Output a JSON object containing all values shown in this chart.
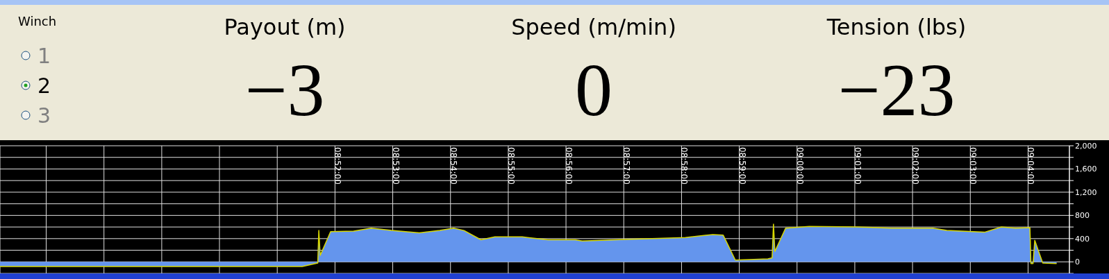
{
  "chart_data": [
    {
      "type": "other",
      "title": "Winch",
      "categories": [
        "1",
        "2",
        "3"
      ],
      "colors": [
        "#808080",
        "#000000",
        "#808080"
      ],
      "annotations": [
        "Payout (m)",
        "−3",
        "Speed (m/min)",
        "0",
        "Tension (lbs)",
        "−23"
      ]
    },
    {
      "type": "area",
      "x": [
        8.77,
        8.8572,
        8.8617,
        8.862,
        8.8624,
        8.8654,
        8.8721,
        8.8771,
        8.883,
        8.891,
        8.8969,
        8.9009,
        8.9039,
        8.9088,
        8.9128,
        8.9207,
        8.9281,
        8.936,
        8.938,
        8.9519,
        8.9678,
        8.9757,
        8.9787,
        8.9822,
        8.9916,
        8.9928,
        8.9932,
        8.9936,
        8.9967,
        9.0035,
        9.0174,
        9.0273,
        9.0392,
        9.0432,
        9.0541,
        9.059,
        9.063,
        9.0672,
        9.0675,
        9.0681,
        9.0686,
        9.0709,
        9.0749
      ],
      "series": [
        {
          "color": "#6495ed",
          "values": [
            -80,
            -80,
            -20,
            540,
            110,
            520,
            530,
            580,
            540,
            500,
            540,
            580,
            540,
            380,
            430,
            430,
            380,
            380,
            360,
            390,
            420,
            470,
            460,
            30,
            50,
            70,
            650,
            180,
            580,
            610,
            600,
            580,
            580,
            540,
            510,
            600,
            580,
            590,
            -30,
            -30,
            370,
            -20,
            -30
          ]
        }
      ],
      "xlim": [
        8.77,
        9.0786
      ],
      "xticks": [
        {
          "value": 8.78333,
          "label": null
        },
        {
          "value": 8.8,
          "label": null
        },
        {
          "value": 8.81667,
          "label": null
        },
        {
          "value": 8.83333,
          "label": null
        },
        {
          "value": 8.85,
          "label": null
        },
        {
          "value": 8.86667,
          "label": "08:52:00"
        },
        {
          "value": 8.88333,
          "label": "08:53:00"
        },
        {
          "value": 8.9,
          "label": "08:54:00"
        },
        {
          "value": 8.91667,
          "label": "08:55:00"
        },
        {
          "value": 8.93333,
          "label": "08:56:00"
        },
        {
          "value": 8.95,
          "label": "08:57:00"
        },
        {
          "value": 8.96667,
          "label": "08:58:00"
        },
        {
          "value": 8.98333,
          "label": "08:59:00"
        },
        {
          "value": 9.0,
          "label": "09:00:00"
        },
        {
          "value": 9.01667,
          "label": "09:01:00"
        },
        {
          "value": 9.03333,
          "label": "09:02:00"
        },
        {
          "value": 9.05,
          "label": "09:03:00"
        },
        {
          "value": 9.06667,
          "label": "09:04:00"
        }
      ],
      "ylim": [
        -200,
        2000
      ],
      "yticks": [
        {
          "value": -200,
          "label": null
        },
        0,
        {
          "value": 200,
          "label": null
        },
        400,
        {
          "value": 600,
          "label": null
        },
        800,
        {
          "value": 1000,
          "label": null
        },
        {
          "value": 1200,
          "label": "1,200"
        },
        {
          "value": 1400,
          "label": null
        },
        {
          "value": 1600,
          "label": "1,600"
        },
        {
          "value": 1800,
          "label": null
        },
        {
          "value": 2000,
          "label": "2,000"
        }
      ],
      "grid": true
    }
  ]
}
